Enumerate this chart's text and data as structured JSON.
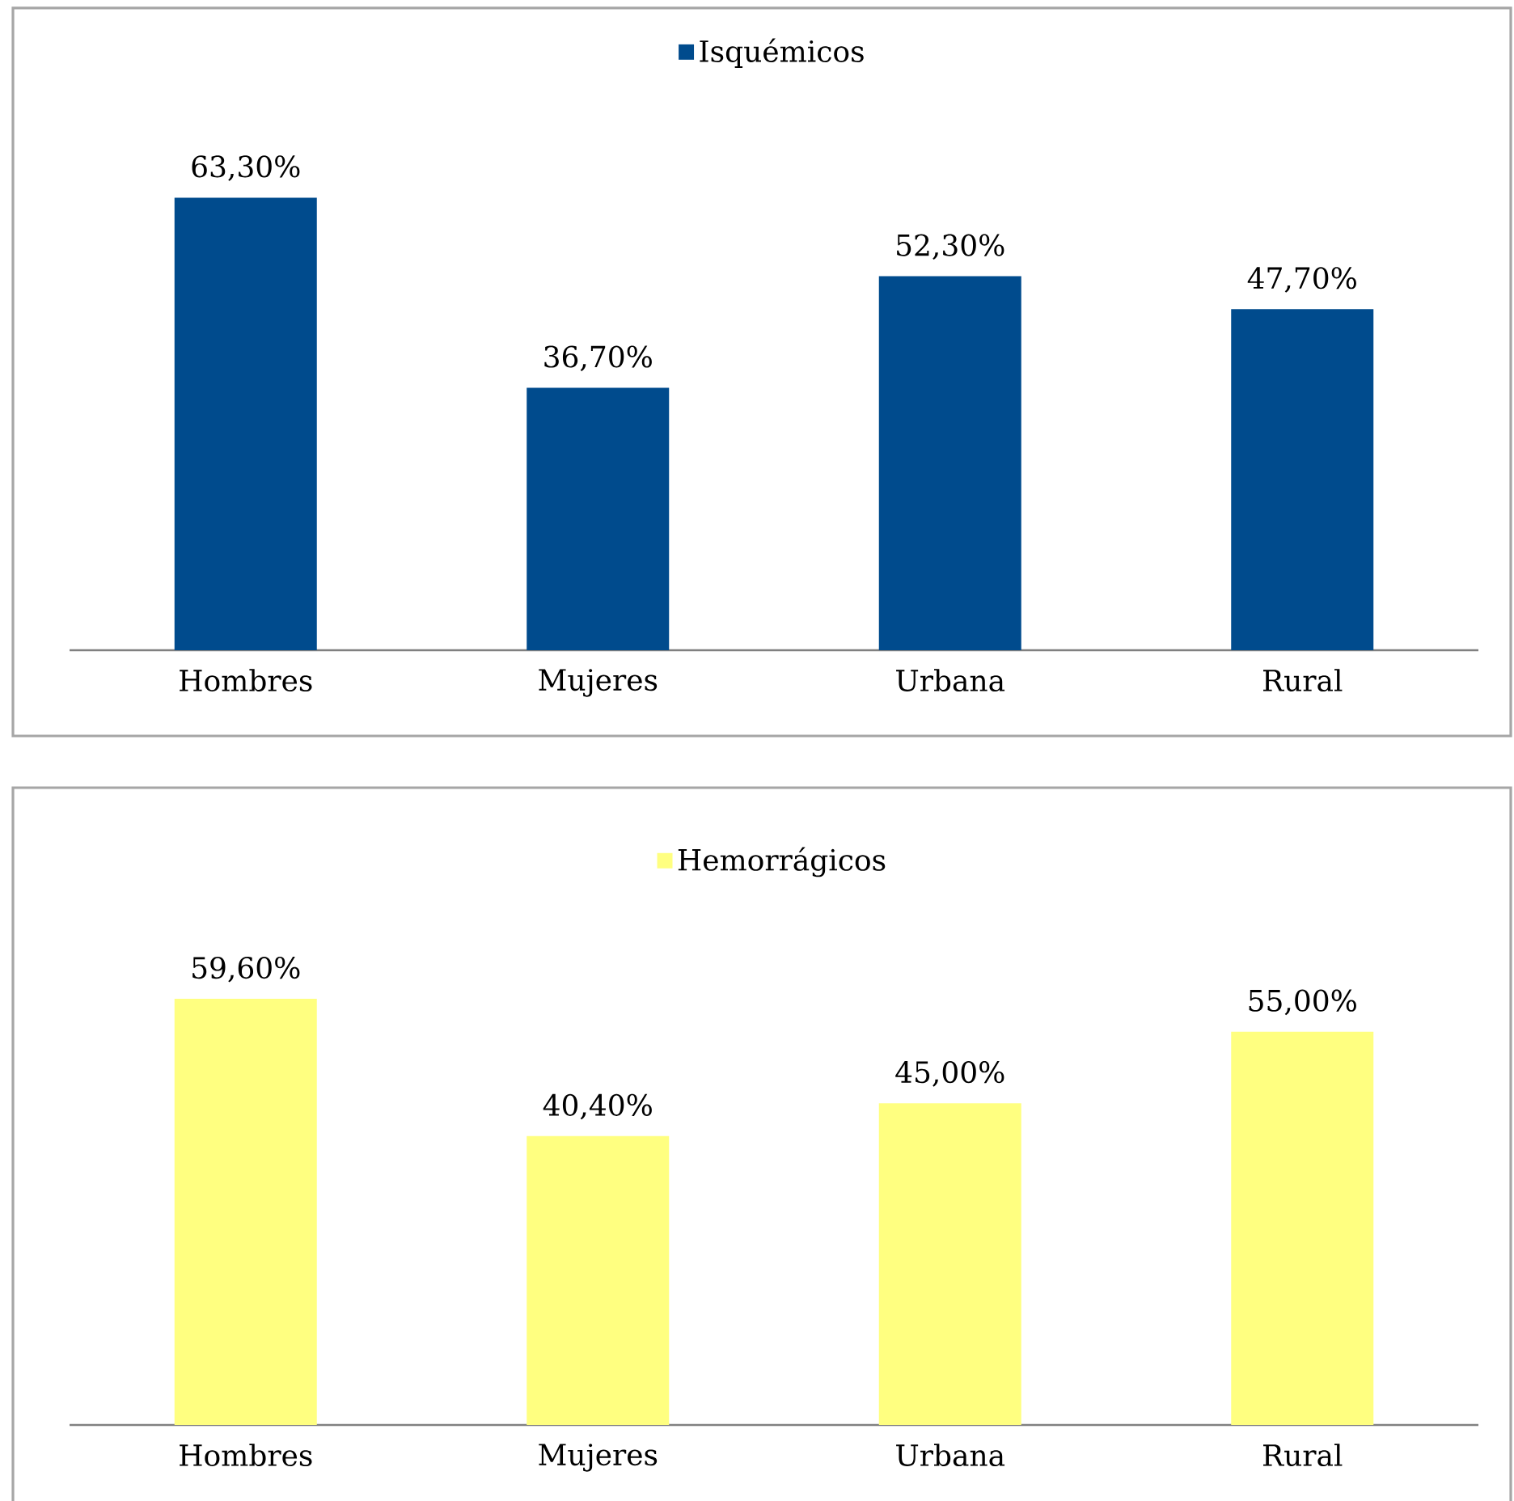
{
  "chart_data": [
    {
      "type": "bar",
      "categories": [
        "Hombres",
        "Mujeres",
        "Urbana",
        "Rural"
      ],
      "legend": "top",
      "series": [
        {
          "name": "Isquémicos",
          "color": "#004b8d",
          "values": [
            63.3,
            36.7,
            52.3,
            47.7
          ],
          "value_labels": [
            "63,30%",
            "36,70%",
            "52,30%",
            "47,70%"
          ]
        }
      ]
    },
    {
      "type": "bar",
      "categories": [
        "Hombres",
        "Mujeres",
        "Urbana",
        "Rural"
      ],
      "legend": "top",
      "series": [
        {
          "name": "Hemorrágicos",
          "color": "#ffff80",
          "values": [
            59.6,
            40.4,
            45.0,
            55.0
          ],
          "value_labels": [
            "59,60%",
            "40,40%",
            "45,00%",
            "55,00%"
          ]
        }
      ]
    }
  ]
}
